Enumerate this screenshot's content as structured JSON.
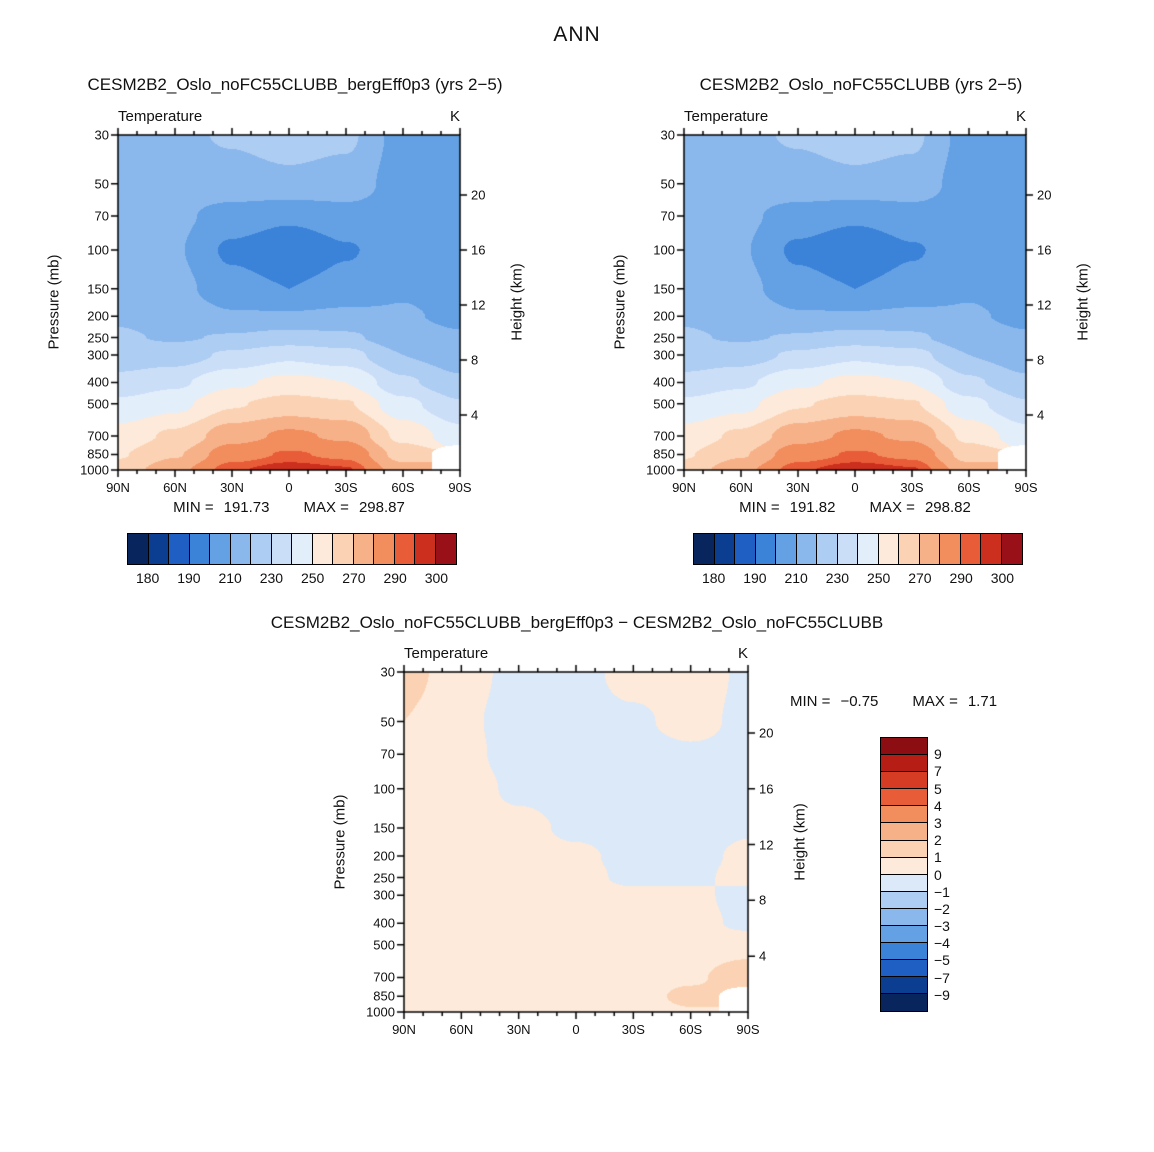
{
  "title": "ANN",
  "axes": {
    "pressure_label": "Pressure (mb)",
    "height_label": "Height (km)",
    "pressure_ticks": [
      30,
      50,
      70,
      100,
      150,
      200,
      250,
      300,
      400,
      500,
      700,
      850,
      1000
    ],
    "height_ticks_km": [
      20,
      16,
      12,
      8,
      4
    ],
    "lat_labels": [
      "90N",
      "60N",
      "30N",
      "0",
      "30S",
      "60S",
      "90S"
    ],
    "lat_values": [
      90,
      60,
      30,
      0,
      -30,
      -60,
      -90
    ]
  },
  "palettes": {
    "temperature": [
      "#08255e",
      "#0b3d91",
      "#1f5fc4",
      "#3b82d9",
      "#64a1e4",
      "#8ab8ec",
      "#aecdf2",
      "#cbdef7",
      "#e3eefb",
      "#fdeada",
      "#fbd3b4",
      "#f7b189",
      "#f28d5e",
      "#e85c38",
      "#cc2f1d",
      "#991018"
    ],
    "difference": [
      "#08255e",
      "#0b3d91",
      "#1f5fc4",
      "#3b82d9",
      "#64a1e4",
      "#8ab8ec",
      "#aecdf2",
      "#dce9f8",
      "#fdeada",
      "#fbd3b4",
      "#f7b189",
      "#f28d5e",
      "#e85c38",
      "#d63b24",
      "#b51d15",
      "#8c0d12"
    ],
    "missing": "#ffffff"
  },
  "panels": [
    {
      "heading": "CESM2B2_Oslo_noFC55CLUBB_bergEff0p3 (yrs 2−5)",
      "plot_title": "Temperature",
      "unit": "K",
      "min_label": "MIN =",
      "min_value": "191.73",
      "max_label": "MAX =",
      "max_value": "298.87",
      "colorbar_labels": [
        "180",
        "190",
        "210",
        "230",
        "250",
        "270",
        "290",
        "300"
      ],
      "palette": "temperature",
      "chart_index": 0
    },
    {
      "heading": "CESM2B2_Oslo_noFC55CLUBB (yrs 2−5)",
      "plot_title": "Temperature",
      "unit": "K",
      "min_label": "MIN =",
      "min_value": "191.82",
      "max_label": "MAX =",
      "max_value": "298.82",
      "colorbar_labels": [
        "180",
        "190",
        "210",
        "230",
        "250",
        "270",
        "290",
        "300"
      ],
      "palette": "temperature",
      "chart_index": 1
    },
    {
      "heading": "CESM2B2_Oslo_noFC55CLUBB_bergEff0p3 − CESM2B2_Oslo_noFC55CLUBB",
      "plot_title": "Temperature",
      "unit": "K",
      "min_label": "MIN =",
      "min_value": "−0.75",
      "max_label": "MAX =",
      "max_value": "1.71",
      "colorbar_labels": [
        "9",
        "7",
        "5",
        "4",
        "3",
        "2",
        "1",
        "0",
        "−1",
        "−2",
        "−3",
        "−4",
        "−5",
        "−7",
        "−9"
      ],
      "palette": "difference",
      "chart_index": 2
    }
  ],
  "chart_data": [
    {
      "type": "contour",
      "title": "CESM2B2_Oslo_noFC55CLUBB_bergEff0p3 (yrs 2-5)",
      "variable": "Temperature",
      "units": "K",
      "x_lat_deg": [
        90,
        60,
        30,
        0,
        -30,
        -60,
        -90
      ],
      "x_labels": [
        "90N",
        "60N",
        "30N",
        "0",
        "30S",
        "60S",
        "90S"
      ],
      "y_pressure_mb": [
        30,
        50,
        70,
        100,
        150,
        200,
        250,
        300,
        400,
        500,
        700,
        850,
        1000
      ],
      "y_axis_scale": "log",
      "right_axis_height_km": [
        20,
        16,
        12,
        8,
        4
      ],
      "levels": [
        180,
        185,
        190,
        200,
        210,
        220,
        230,
        240,
        250,
        260,
        270,
        280,
        290,
        295,
        300
      ],
      "min": 191.73,
      "max": 298.87,
      "values": [
        [
          216,
          218,
          221,
          224,
          222,
          206,
          201
        ],
        [
          214,
          215,
          216,
          218,
          216,
          205,
          200
        ],
        [
          212,
          212,
          206,
          202,
          206,
          205,
          200
        ],
        [
          213,
          211,
          198,
          191.7,
          199,
          206,
          202
        ],
        [
          216,
          213,
          204,
          200,
          204,
          209,
          205
        ],
        [
          219,
          216,
          211,
          211,
          212,
          211,
          208
        ],
        [
          221,
          219,
          221,
          224,
          222,
          214,
          211
        ],
        [
          224,
          225,
          232,
          238,
          234,
          220,
          214
        ],
        [
          233,
          238,
          248,
          253,
          250,
          232,
          222
        ],
        [
          242,
          247,
          259,
          264,
          261,
          243,
          231
        ],
        [
          254,
          262,
          276,
          282,
          278,
          257,
          244
        ],
        [
          259,
          269,
          286,
          291,
          288,
          266,
          null
        ],
        [
          264,
          277,
          294,
          298.9,
          296,
          274,
          null
        ]
      ]
    },
    {
      "type": "contour",
      "title": "CESM2B2_Oslo_noFC55CLUBB (yrs 2-5)",
      "variable": "Temperature",
      "units": "K",
      "x_lat_deg": [
        90,
        60,
        30,
        0,
        -30,
        -60,
        -90
      ],
      "x_labels": [
        "90N",
        "60N",
        "30N",
        "0",
        "30S",
        "60S",
        "90S"
      ],
      "y_pressure_mb": [
        30,
        50,
        70,
        100,
        150,
        200,
        250,
        300,
        400,
        500,
        700,
        850,
        1000
      ],
      "y_axis_scale": "log",
      "right_axis_height_km": [
        20,
        16,
        12,
        8,
        4
      ],
      "levels": [
        180,
        185,
        190,
        200,
        210,
        220,
        230,
        240,
        250,
        260,
        270,
        280,
        290,
        295,
        300
      ],
      "min": 191.82,
      "max": 298.82,
      "values": [
        [
          216,
          218,
          221,
          224,
          222,
          206,
          201
        ],
        [
          214,
          215,
          216,
          218,
          216,
          205,
          200
        ],
        [
          212,
          212,
          206,
          202,
          206,
          205,
          200
        ],
        [
          213,
          211,
          198,
          191.8,
          199,
          206,
          202
        ],
        [
          216,
          213,
          204,
          200,
          204,
          209,
          205
        ],
        [
          219,
          216,
          211,
          211,
          212,
          211,
          208
        ],
        [
          221,
          219,
          221,
          224,
          222,
          214,
          211
        ],
        [
          224,
          225,
          232,
          238,
          234,
          220,
          214
        ],
        [
          233,
          238,
          248,
          253,
          250,
          232,
          222
        ],
        [
          242,
          247,
          259,
          264,
          261,
          243,
          231
        ],
        [
          254,
          262,
          276,
          282,
          278,
          257,
          244
        ],
        [
          259,
          269,
          286,
          291,
          288,
          266,
          null
        ],
        [
          264,
          277,
          294,
          298.8,
          295.8,
          274,
          null
        ]
      ]
    },
    {
      "type": "contour",
      "title": "CESM2B2_Oslo_noFC55CLUBB_bergEff0p3 - CESM2B2_Oslo_noFC55CLUBB",
      "variable": "Temperature difference",
      "units": "K",
      "x_lat_deg": [
        90,
        60,
        30,
        0,
        -30,
        -60,
        -90
      ],
      "x_labels": [
        "90N",
        "60N",
        "30N",
        "0",
        "30S",
        "60S",
        "90S"
      ],
      "y_pressure_mb": [
        30,
        50,
        70,
        100,
        150,
        200,
        250,
        300,
        400,
        500,
        700,
        850,
        1000
      ],
      "y_axis_scale": "log",
      "right_axis_height_km": [
        20,
        16,
        12,
        8,
        4
      ],
      "levels": [
        -9,
        -7,
        -5,
        -4,
        -3,
        -2,
        -1,
        0,
        1,
        2,
        3,
        4,
        5,
        7,
        9
      ],
      "min": -0.75,
      "max": 1.71,
      "values": [
        [
          1.4,
          0.4,
          -0.3,
          -0.4,
          0.4,
          0.6,
          -0.2
        ],
        [
          1.0,
          0.2,
          -0.4,
          -0.4,
          -0.2,
          0.4,
          -0.3
        ],
        [
          0.6,
          0.3,
          -0.4,
          -0.5,
          -0.4,
          -0.2,
          -0.3
        ],
        [
          0.4,
          0.5,
          -0.2,
          -0.4,
          -0.75,
          -0.4,
          -0.2
        ],
        [
          0.2,
          0.4,
          0.3,
          -0.2,
          -0.4,
          -0.4,
          -0.1
        ],
        [
          0.1,
          0.3,
          0.4,
          0.2,
          -0.3,
          -0.3,
          0.2
        ],
        [
          0.2,
          0.3,
          0.4,
          0.3,
          -0.2,
          -0.2,
          0.3
        ],
        [
          0.3,
          0.4,
          0.4,
          0.4,
          0.2,
          0.2,
          -0.3
        ],
        [
          0.4,
          0.4,
          0.5,
          0.4,
          0.3,
          0.3,
          -0.2
        ],
        [
          0.4,
          0.5,
          0.5,
          0.5,
          0.4,
          0.4,
          0.5
        ],
        [
          0.5,
          0.5,
          0.6,
          0.5,
          0.4,
          0.8,
          1.71
        ],
        [
          0.5,
          0.6,
          0.6,
          0.5,
          0.5,
          1.3,
          null
        ],
        [
          0.6,
          0.6,
          0.6,
          0.5,
          0.5,
          0.9,
          null
        ]
      ]
    }
  ]
}
